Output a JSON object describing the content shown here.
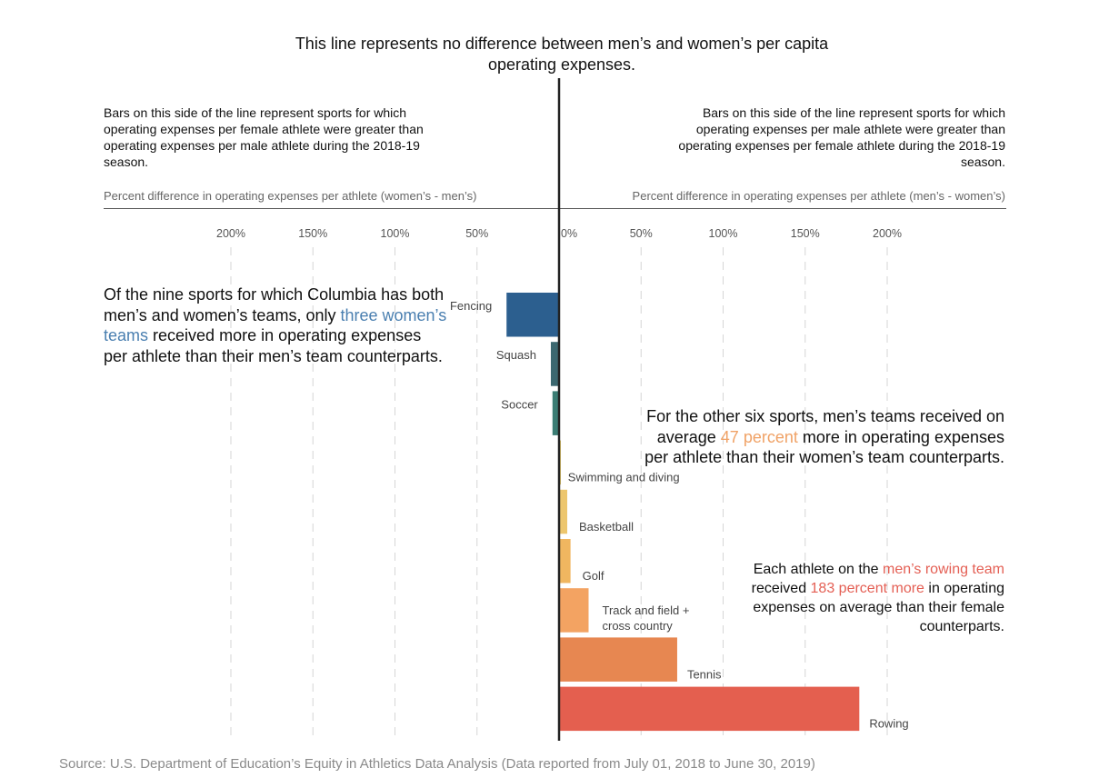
{
  "center_title": "This line represents no difference between men’s and women’s per capita operating expenses.",
  "left_note": "Bars on this side of the line represent sports for which operating expenses per female athlete were greater than operating expenses per male athlete during the 2018-19 season.",
  "right_note": "Bars on this side of the line represent sports for which operating expenses per male athlete were greater than operating expenses per female athlete during the 2018-19 season.",
  "left_axis_title": "Percent difference in operating expenses per athlete (women’s - men’s)",
  "right_axis_title": "Percent difference in operating expenses per athlete (men’s - women’s)",
  "annotation_left": {
    "part1": "Of the nine sports for which Columbia has both men’s and women’s teams, only ",
    "highlight": "three women’s teams",
    "part2": " received more in operating expenses per athlete than their men’s team counterparts."
  },
  "annotation_mid": {
    "part1": "For the other six sports, men’s teams received on average ",
    "highlight": "47 percent",
    "part2": " more in operating expenses per athlete than their women’s team counterparts."
  },
  "annotation_low": {
    "part1": "Each athlete on the ",
    "highlight1": "men’s rowing team",
    "part2": " received ",
    "highlight2": "183 percent more",
    "part3": " in operating expenses on average than their female counterparts."
  },
  "source": "Source: U.S. Department of Education’s Equity in Athletics Data Analysis (Data reported from July 01, 2018 to June 30, 2019)",
  "colors": {
    "blue_highlight": "#4a7fb0",
    "orange_highlight": "#f0a266",
    "red_highlight": "#e45f54"
  },
  "chart_data": {
    "type": "bar",
    "orientation": "horizontal-diverging",
    "ticks_left": [
      "200%",
      "150%",
      "100%",
      "50%"
    ],
    "ticks_right": [
      "0%",
      "50%",
      "100%",
      "150%",
      "200%"
    ],
    "tick_values": [
      -200,
      -150,
      -100,
      -50,
      0,
      50,
      100,
      150,
      200
    ],
    "xlim": [
      -200,
      200
    ],
    "grid": true,
    "bars": [
      {
        "label": "Fencing",
        "value": -32,
        "color": "#2c5f8f"
      },
      {
        "label": "Squash",
        "value": -5,
        "color": "#3c6870"
      },
      {
        "label": "Soccer",
        "value": -4,
        "color": "#3b7d74"
      },
      {
        "label": "Swimming and diving",
        "value": 1,
        "color": "#e0c468"
      },
      {
        "label": "Basketball",
        "value": 5,
        "color": "#edc66d"
      },
      {
        "label": "Golf",
        "value": 7,
        "color": "#f0b660"
      },
      {
        "label": "Track and field + cross country",
        "value": 18,
        "color": "#f3a362"
      },
      {
        "label": "Tennis",
        "value": 72,
        "color": "#e78751"
      },
      {
        "label": "Rowing",
        "value": 183,
        "color": "#e45f4f"
      }
    ]
  }
}
